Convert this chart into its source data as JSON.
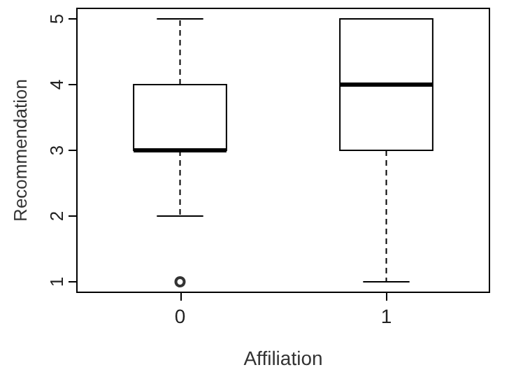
{
  "chart_data": {
    "type": "box",
    "xlabel": "Affiliation",
    "ylabel": "Recommendation",
    "categories": [
      "0",
      "1"
    ],
    "series": [
      {
        "color": "#000000",
        "boxes": [
          {
            "low": 2,
            "q1": 3,
            "median": 3,
            "q3": 4,
            "high": 5,
            "outliers": [
              1
            ]
          },
          {
            "low": 1,
            "q1": 3,
            "median": 4,
            "q3": 5,
            "high": 5
          }
        ]
      }
    ],
    "ylim": [
      0.84,
      5.16
    ],
    "yticks": [
      1,
      2,
      3,
      4,
      5
    ],
    "line_style": "dashed",
    "marker": "circle"
  }
}
